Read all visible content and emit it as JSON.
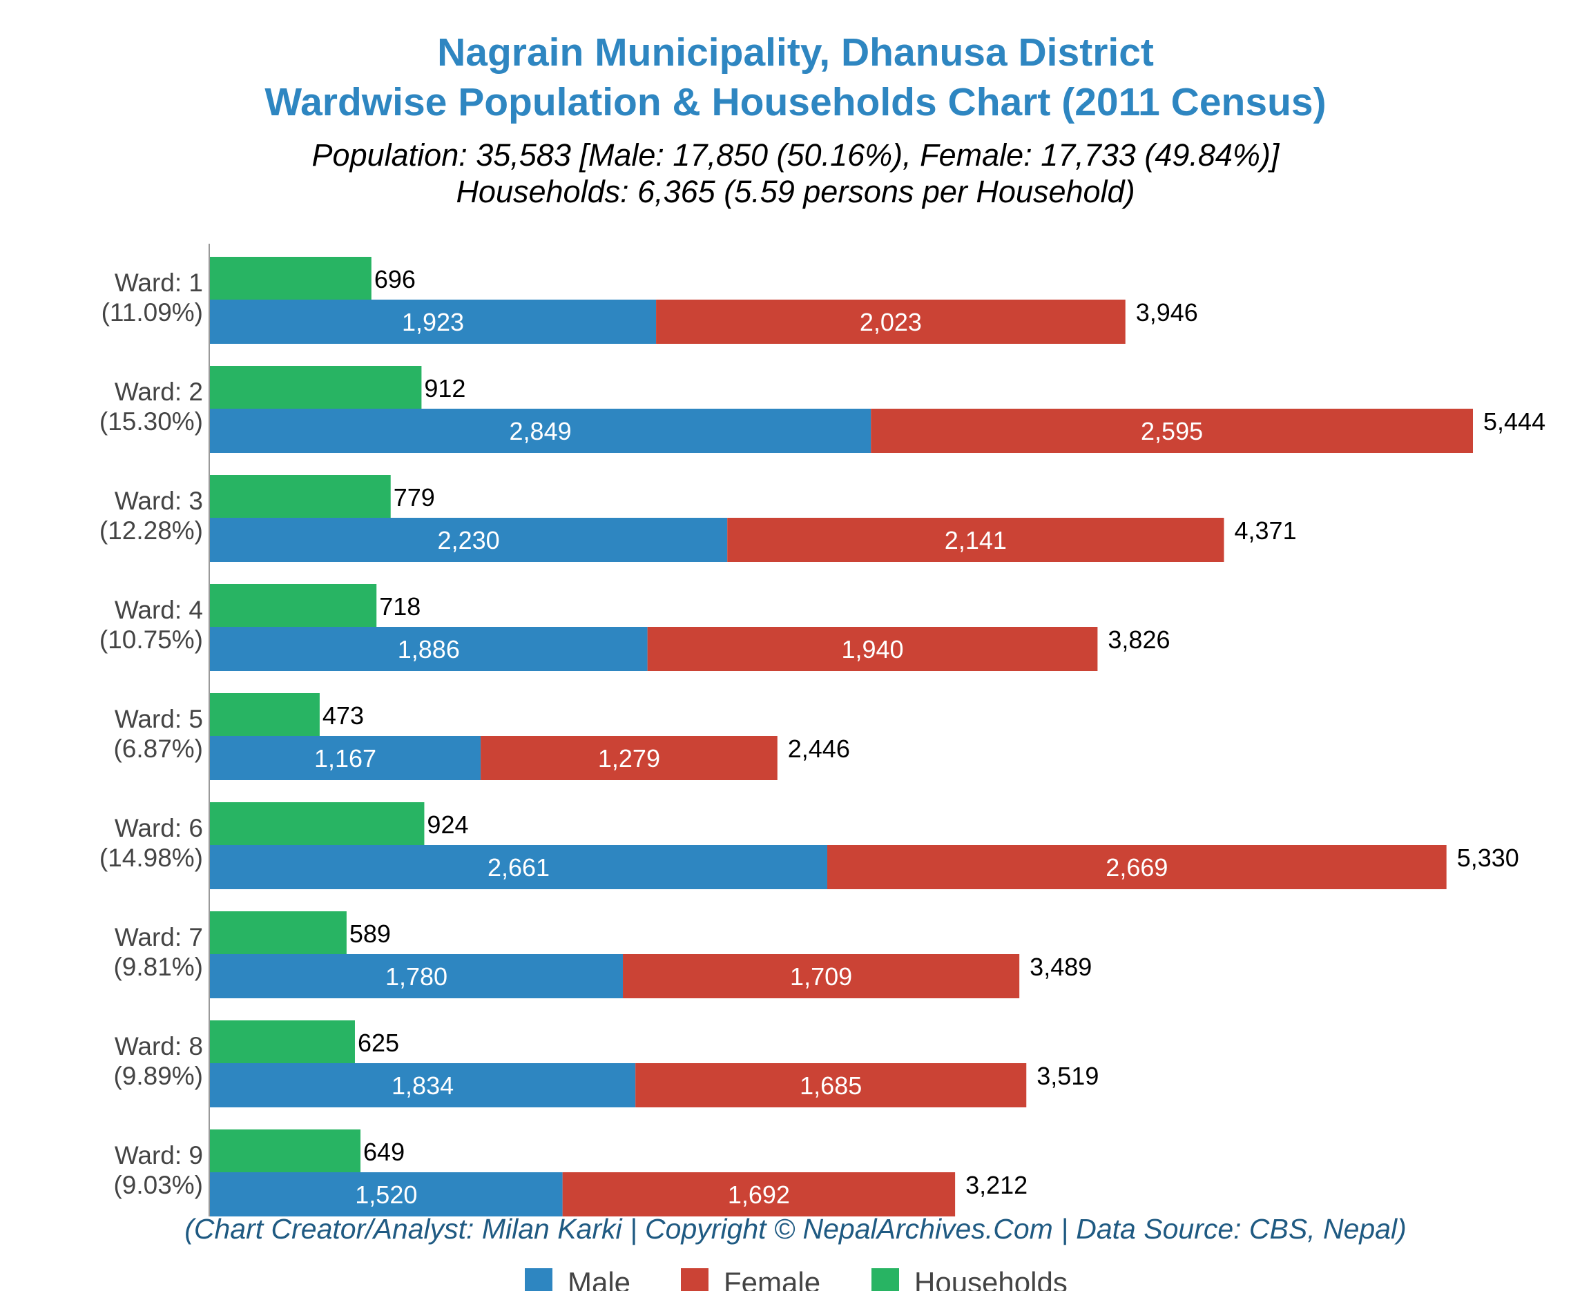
{
  "title_line1": "Nagrain Municipality, Dhanusa District",
  "title_line2": "Wardwise Population & Households Chart (2011 Census)",
  "subtitle_line1": "Population: 35,583 [Male: 17,850 (50.16%), Female: 17,733 (49.84%)]",
  "subtitle_line2": "Households: 6,365 (5.59 persons per Household)",
  "credit": "(Chart Creator/Analyst: Milan Karki | Copyright © NepalArchives.Com | Data Source: CBS, Nepal)",
  "colors": {
    "male": "#2e86c1",
    "female": "#cb4335",
    "households": "#28b463",
    "title": "#2e86c1",
    "credit": "#1f5a82"
  },
  "legend": {
    "male": "Male",
    "female": "Female",
    "households": "Households"
  },
  "chart_data": {
    "type": "bar",
    "orientation": "horizontal",
    "stacked": [
      "Male",
      "Female"
    ],
    "categories": [
      "Ward: 1",
      "Ward: 2",
      "Ward: 3",
      "Ward: 4",
      "Ward: 5",
      "Ward: 6",
      "Ward: 7",
      "Ward: 8",
      "Ward: 9"
    ],
    "category_shares": [
      "(11.09%)",
      "(15.30%)",
      "(12.28%)",
      "(10.75%)",
      "(6.87%)",
      "(14.98%)",
      "(9.81%)",
      "(9.89%)",
      "(9.03%)"
    ],
    "series": [
      {
        "name": "Male",
        "values": [
          1923,
          2849,
          2230,
          1886,
          1167,
          2661,
          1780,
          1834,
          1520
        ],
        "labels": [
          "1,923",
          "2,849",
          "2,230",
          "1,886",
          "1,167",
          "2,661",
          "1,780",
          "1,834",
          "1,520"
        ]
      },
      {
        "name": "Female",
        "values": [
          2023,
          2595,
          2141,
          1940,
          1279,
          2669,
          1709,
          1685,
          1692
        ],
        "labels": [
          "2,023",
          "2,595",
          "2,141",
          "1,940",
          "1,279",
          "2,669",
          "1,709",
          "1,685",
          "1,692"
        ]
      },
      {
        "name": "Households",
        "values": [
          696,
          912,
          779,
          718,
          473,
          924,
          589,
          625,
          649
        ],
        "labels": [
          "696",
          "912",
          "779",
          "718",
          "473",
          "924",
          "589",
          "625",
          "649"
        ]
      }
    ],
    "totals": [
      3946,
      5444,
      4371,
      3826,
      2446,
      5330,
      3489,
      3519,
      3212
    ],
    "total_labels": [
      "3,946",
      "5,444",
      "4,371",
      "3,826",
      "2,446",
      "5,330",
      "3,489",
      "3,519",
      "3,212"
    ],
    "xlim": [
      0,
      5700
    ],
    "grid": false,
    "legend_position": "bottom"
  }
}
